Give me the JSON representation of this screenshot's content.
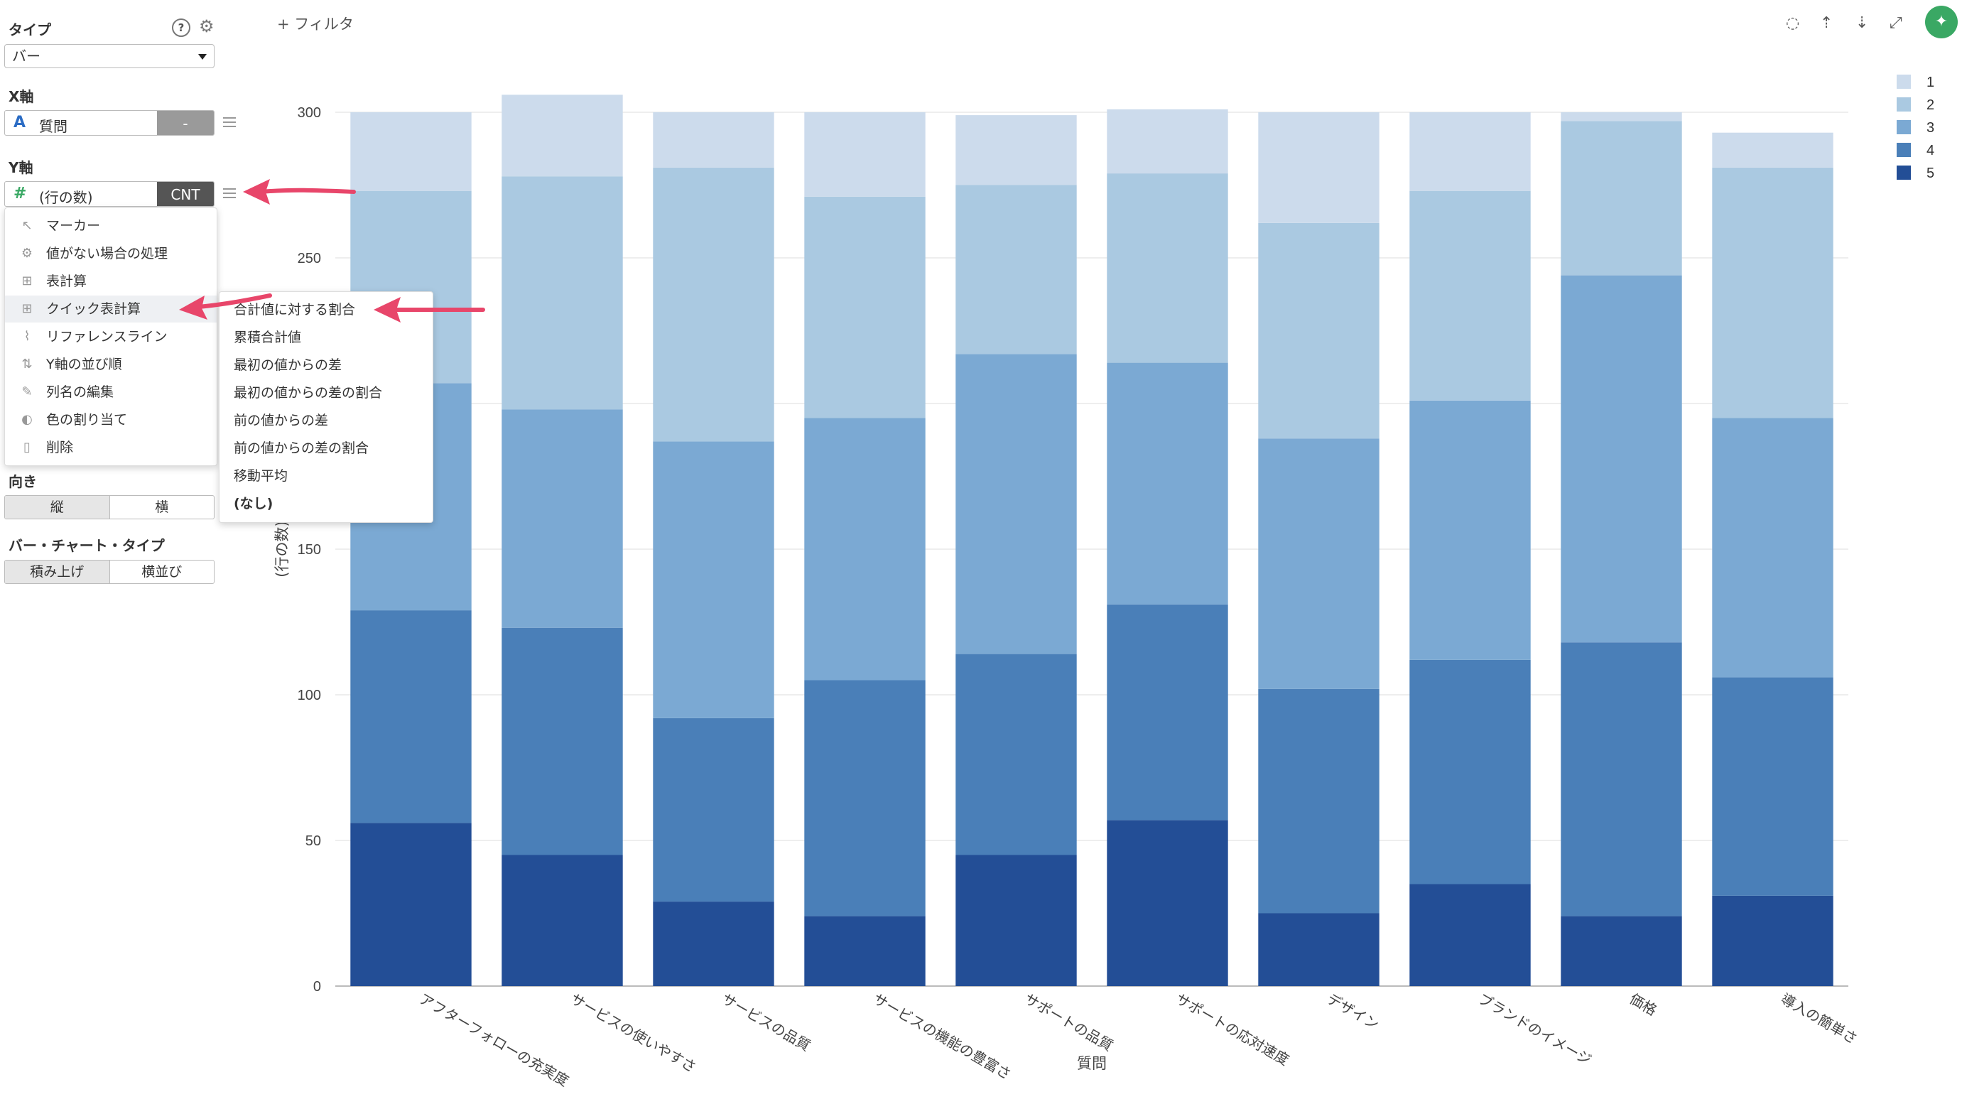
{
  "panel": {
    "type_label": "タイプ",
    "type_value": "バー",
    "x_label": "X軸",
    "x_field": {
      "icon": "A",
      "name": "質問",
      "agg": "-"
    },
    "y_label": "Y軸",
    "y_field": {
      "icon": "#",
      "name": "(行の数)",
      "agg": "CNT"
    },
    "orientation_label": "向き",
    "orientation_options": [
      "縦",
      "横"
    ],
    "bar_type_label": "バー・チャート・タイプ",
    "bar_type_options": [
      "積み上げ",
      "横並び"
    ]
  },
  "context_menu": {
    "items": [
      {
        "label": "マーカー",
        "icon": "cursor-icon"
      },
      {
        "label": "値がない場合の処理",
        "icon": "gear-icon"
      },
      {
        "label": "表計算",
        "icon": "table-icon"
      },
      {
        "label": "クイック表計算",
        "icon": "table-icon"
      },
      {
        "label": "リファレンスライン",
        "icon": "line-chart-icon"
      },
      {
        "label": "Y軸の並び順",
        "icon": "sort-icon"
      },
      {
        "label": "列名の編集",
        "icon": "edit-icon"
      },
      {
        "label": "色の割り当て",
        "icon": "palette-icon"
      },
      {
        "label": "削除",
        "icon": "trash-icon"
      }
    ]
  },
  "submenu": {
    "items": [
      "合計値に対する割合",
      "累積合計値",
      "最初の値からの差",
      "最初の値からの差の割合",
      "前の値からの差",
      "前の値からの差の割合",
      "移動平均",
      "(なし)"
    ]
  },
  "toolbar": {
    "filter_label": "+ フィルタ",
    "icons": [
      "comment-icon",
      "upload-icon",
      "download-icon",
      "expand-icon",
      "pin-icon"
    ]
  },
  "chart_data": {
    "type": "bar",
    "stacked": true,
    "categories": [
      "アフターフォローの充実度",
      "サービスの使いやすさ",
      "サービスの品質",
      "サービスの機能の豊富さ",
      "サポートの品質",
      "サポートの応対速度",
      "デザイン",
      "ブランドのイメージ",
      "価格",
      "導入の簡単さ"
    ],
    "series": [
      {
        "name": "5",
        "color": "#234e96",
        "values": [
          56,
          45,
          29,
          24,
          45,
          57,
          25,
          35,
          24,
          31
        ]
      },
      {
        "name": "4",
        "color": "#4a7fb8",
        "values": [
          73,
          78,
          63,
          81,
          69,
          74,
          77,
          77,
          94,
          75
        ]
      },
      {
        "name": "3",
        "color": "#7ba9d3",
        "values": [
          78,
          75,
          95,
          90,
          103,
          83,
          86,
          89,
          126,
          89
        ]
      },
      {
        "name": "2",
        "color": "#aac9e1",
        "values": [
          66,
          80,
          94,
          76,
          58,
          65,
          74,
          72,
          53,
          86
        ]
      },
      {
        "name": "1",
        "color": "#ccdbec",
        "values": [
          27,
          28,
          19,
          29,
          24,
          22,
          38,
          27,
          3,
          12
        ]
      }
    ],
    "xlabel": "質問",
    "ylabel": "(行の数)",
    "ylim": [
      0,
      300
    ],
    "yticks": [
      0,
      50,
      100,
      150,
      200,
      250,
      300
    ],
    "legend_position": "top-right",
    "legend_order": [
      "1",
      "2",
      "3",
      "4",
      "5"
    ],
    "grid": true
  },
  "colors": {
    "accent_green": "#3aa864",
    "arrow_pink": "#e8466a",
    "cnt_bg": "#555555",
    "agg_bg": "#9a9a9a"
  }
}
